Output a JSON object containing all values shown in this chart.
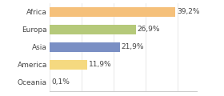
{
  "categories": [
    "Africa",
    "Europa",
    "Asia",
    "America",
    "Oceania"
  ],
  "values": [
    39.2,
    26.9,
    21.9,
    11.9,
    0.1
  ],
  "labels": [
    "39,2%",
    "26,9%",
    "21,9%",
    "11,9%",
    "0,1%"
  ],
  "bar_colors": [
    "#f5c07a",
    "#b5c97a",
    "#7a8fc4",
    "#f5d980",
    "#f5c07a"
  ],
  "background_color": "#ffffff",
  "xlim_max": 46,
  "bar_height": 0.55,
  "label_fontsize": 6.5,
  "tick_fontsize": 6.5,
  "grid_color": "#e0e0e0",
  "text_color": "#444444",
  "spine_color": "#cccccc"
}
